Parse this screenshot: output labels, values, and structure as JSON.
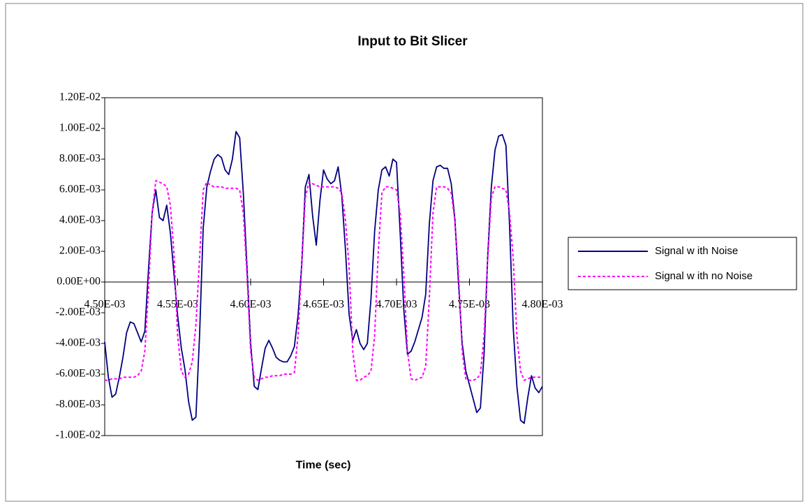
{
  "chart_data": {
    "type": "line",
    "title": "Input to Bit Slicer",
    "x_label": "Time (sec)",
    "x": [
      0.0045,
      0.0045025,
      0.004505,
      0.0045075,
      0.00451,
      0.0045125,
      0.004515,
      0.0045175,
      0.00452,
      0.0045225,
      0.004525,
      0.0045275,
      0.00453,
      0.0045325,
      0.004535,
      0.0045375,
      0.00454,
      0.0045425,
      0.004545,
      0.0045475,
      0.00455,
      0.0045525,
      0.004555,
      0.0045575,
      0.00456,
      0.0045625,
      0.004565,
      0.0045675,
      0.00457,
      0.0045725,
      0.004575,
      0.0045775,
      0.00458,
      0.0045825,
      0.004585,
      0.0045875,
      0.00459,
      0.0045925,
      0.004595,
      0.0045975,
      0.0046,
      0.0046025,
      0.004605,
      0.0046075,
      0.00461,
      0.0046125,
      0.004615,
      0.0046175,
      0.00462,
      0.0046225,
      0.004625,
      0.0046275,
      0.00463,
      0.0046325,
      0.004635,
      0.0046375,
      0.00464,
      0.0046425,
      0.004645,
      0.0046475,
      0.00465,
      0.0046525,
      0.004655,
      0.0046575,
      0.00466,
      0.0046625,
      0.004665,
      0.0046675,
      0.00467,
      0.0046725,
      0.004675,
      0.0046775,
      0.00468,
      0.0046825,
      0.004685,
      0.0046875,
      0.00469,
      0.0046925,
      0.004695,
      0.0046975,
      0.0047,
      0.0047025,
      0.004705,
      0.0047075,
      0.00471,
      0.0047125,
      0.004715,
      0.0047175,
      0.00472,
      0.0047225,
      0.004725,
      0.0047275,
      0.00473,
      0.0047325,
      0.004735,
      0.0047375,
      0.00474,
      0.0047425,
      0.004745,
      0.0047475,
      0.00475,
      0.0047525,
      0.004755,
      0.0047575,
      0.00476,
      0.0047625,
      0.004765,
      0.0047675,
      0.00477,
      0.0047725,
      0.004775,
      0.0047775,
      0.00478,
      0.0047825,
      0.004785,
      0.0047875,
      0.00479,
      0.0047925,
      0.004795,
      0.0047975,
      0.0048
    ],
    "series": [
      {
        "name": "Signal w ith Noise",
        "color": "#000080",
        "dash": false,
        "values": [
          -0.0039,
          -0.0062,
          -0.0075,
          -0.0073,
          -0.0062,
          -0.0049,
          -0.0033,
          -0.0026,
          -0.0027,
          -0.0033,
          -0.0039,
          -0.0032,
          0.0008,
          0.0045,
          0.006,
          0.0042,
          0.004,
          0.005,
          0.0032,
          0.0005,
          -0.0022,
          -0.0043,
          -0.0057,
          -0.0078,
          -0.009,
          -0.0088,
          -0.0035,
          0.0035,
          0.0062,
          0.0072,
          0.008,
          0.0083,
          0.0081,
          0.0073,
          0.007,
          0.008,
          0.0098,
          0.0094,
          0.0058,
          0.001,
          -0.004,
          -0.0068,
          -0.007,
          -0.0056,
          -0.0043,
          -0.0038,
          -0.0043,
          -0.0049,
          -0.0051,
          -0.0052,
          -0.0052,
          -0.0048,
          -0.0042,
          -0.0022,
          0.0011,
          0.0062,
          0.007,
          0.0043,
          0.0024,
          0.0053,
          0.0073,
          0.0067,
          0.0064,
          0.0066,
          0.0075,
          0.0056,
          0.0021,
          -0.0021,
          -0.0038,
          -0.0031,
          -0.004,
          -0.0044,
          -0.004,
          -0.0011,
          0.0033,
          0.006,
          0.0073,
          0.0075,
          0.0069,
          0.008,
          0.0078,
          0.0032,
          -0.0018,
          -0.0047,
          -0.0045,
          -0.0039,
          -0.0031,
          -0.0023,
          -0.0008,
          0.0038,
          0.0066,
          0.0075,
          0.0076,
          0.0074,
          0.0074,
          0.0064,
          0.0041,
          -0.0001,
          -0.004,
          -0.0058,
          -0.0067,
          -0.0076,
          -0.0085,
          -0.0082,
          -0.0047,
          0.0017,
          0.0062,
          0.0086,
          0.0095,
          0.0096,
          0.0089,
          0.0036,
          -0.003,
          -0.0068,
          -0.009,
          -0.0092,
          -0.0075,
          -0.0061,
          -0.0069,
          -0.0072,
          -0.0068
        ]
      },
      {
        "name": "Signal w ith no Noise",
        "color": "#ff00ff",
        "dash": true,
        "values": [
          -0.0064,
          -0.0064,
          -0.0063,
          -0.0063,
          -0.0063,
          -0.0062,
          -0.0062,
          -0.0062,
          -0.0062,
          -0.0061,
          -0.0058,
          -0.0045,
          -0.0005,
          0.0045,
          0.0066,
          0.0065,
          0.0064,
          0.0062,
          0.005,
          0.0018,
          -0.0035,
          -0.0058,
          -0.0062,
          -0.006,
          -0.0052,
          -0.0028,
          0.0015,
          0.006,
          0.0065,
          0.0063,
          0.0062,
          0.0062,
          0.0062,
          0.0061,
          0.0061,
          0.0061,
          0.0061,
          0.006,
          0.0045,
          0.0005,
          -0.0045,
          -0.0062,
          -0.0064,
          -0.0063,
          -0.0062,
          -0.0062,
          -0.0061,
          -0.0061,
          -0.0061,
          -0.006,
          -0.006,
          -0.006,
          -0.0059,
          -0.0035,
          0.001,
          0.0055,
          0.0065,
          0.0064,
          0.0063,
          0.0062,
          0.0062,
          0.0062,
          0.0062,
          0.0062,
          0.0061,
          0.0058,
          0.004,
          0.001,
          -0.0045,
          -0.0064,
          -0.0064,
          -0.0062,
          -0.0061,
          -0.0058,
          -0.0035,
          0.002,
          0.0058,
          0.0062,
          0.0062,
          0.0061,
          0.006,
          0.0045,
          0.0005,
          -0.0045,
          -0.0063,
          -0.0064,
          -0.0063,
          -0.0062,
          -0.0055,
          -0.001,
          0.0045,
          0.0062,
          0.0062,
          0.0062,
          0.0061,
          0.0058,
          0.004,
          0.0005,
          -0.0045,
          -0.0063,
          -0.0064,
          -0.0064,
          -0.0063,
          -0.006,
          -0.0035,
          0.0015,
          0.0055,
          0.0062,
          0.0062,
          0.0061,
          0.006,
          0.0045,
          0.0015,
          -0.0035,
          -0.0058,
          -0.0064,
          -0.0063,
          -0.0062,
          -0.0062,
          -0.0062,
          -0.0062
        ]
      }
    ],
    "xlim": [
      0.0045,
      0.0048
    ],
    "xticks": [
      {
        "value": 0.0045,
        "label": "4.50E-03"
      },
      {
        "value": 0.00455,
        "label": "4.55E-03"
      },
      {
        "value": 0.0046,
        "label": "4.60E-03"
      },
      {
        "value": 0.00465,
        "label": "4.65E-03"
      },
      {
        "value": 0.0047,
        "label": "4.70E-03"
      },
      {
        "value": 0.00475,
        "label": "4.75E-03"
      },
      {
        "value": 0.0048,
        "label": "4.80E-03"
      }
    ],
    "ylim": [
      -0.01,
      0.012
    ],
    "yticks": [
      {
        "value": -0.01,
        "label": "-1.00E-02"
      },
      {
        "value": -0.008,
        "label": "-8.00E-03"
      },
      {
        "value": -0.006,
        "label": "-6.00E-03"
      },
      {
        "value": -0.004,
        "label": "-4.00E-03"
      },
      {
        "value": -0.002,
        "label": "-2.00E-03"
      },
      {
        "value": 0,
        "label": "0.00E+00"
      },
      {
        "value": 0.002,
        "label": "2.00E-03"
      },
      {
        "value": 0.004,
        "label": "4.00E-03"
      },
      {
        "value": 0.006,
        "label": "6.00E-03"
      },
      {
        "value": 0.008,
        "label": "8.00E-03"
      },
      {
        "value": 0.01,
        "label": "1.00E-02"
      },
      {
        "value": 0.012,
        "label": "1.20E-02"
      }
    ],
    "grid": false,
    "legend": "right"
  }
}
